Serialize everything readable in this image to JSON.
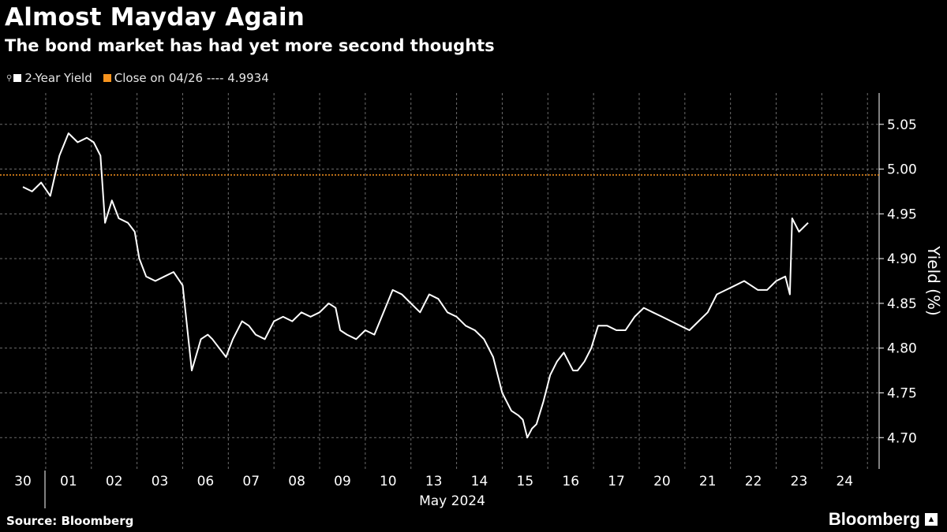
{
  "header": {
    "title": "Almost Mayday Again",
    "subtitle": "The bond market has had yet more second thoughts"
  },
  "legend": {
    "series_label": "2-Year Yield",
    "reference_label": "Close on 04/26 ---- 4.9934"
  },
  "footer": {
    "source": "Source: Bloomberg",
    "brand": "Bloomberg"
  },
  "colors": {
    "background": "#000000",
    "line": "#ffffff",
    "reference": "#f7931e",
    "grid": "#6b6b6b",
    "text": "#ffffff"
  },
  "chart_data": {
    "type": "line",
    "title": "Almost Mayday Again",
    "subtitle": "The bond market has had yet more second thoughts",
    "ylabel": "Yield (%)",
    "xlabel": "May 2024",
    "ylim": [
      4.665,
      5.085
    ],
    "yticks": [
      "4.70",
      "4.75",
      "4.80",
      "4.85",
      "4.90",
      "4.95",
      "5.00",
      "5.05"
    ],
    "grid": true,
    "legend_position": "top-left",
    "categories": [
      "30",
      "01",
      "02",
      "03",
      "06",
      "07",
      "08",
      "09",
      "10",
      "13",
      "14",
      "15",
      "16",
      "17",
      "20",
      "21",
      "22",
      "23",
      "24"
    ],
    "reference_line": {
      "label": "Close on 04/26",
      "value": 4.9934
    },
    "series": [
      {
        "name": "2-Year Yield",
        "x": [
          0.0,
          0.2,
          0.4,
          0.6,
          0.8,
          1.0,
          1.2,
          1.4,
          1.55,
          1.7,
          1.8,
          1.95,
          2.1,
          2.3,
          2.45,
          2.55,
          2.7,
          2.9,
          3.1,
          3.3,
          3.5,
          3.7,
          3.9,
          4.05,
          4.15,
          4.3,
          4.45,
          4.6,
          4.8,
          4.95,
          5.1,
          5.3,
          5.5,
          5.7,
          5.9,
          6.1,
          6.3,
          6.5,
          6.7,
          6.85,
          6.95,
          7.1,
          7.3,
          7.5,
          7.7,
          7.9,
          8.1,
          8.3,
          8.5,
          8.7,
          8.9,
          9.1,
          9.3,
          9.5,
          9.7,
          9.9,
          10.1,
          10.3,
          10.5,
          10.7,
          10.85,
          10.95,
          11.05,
          11.15,
          11.25,
          11.4,
          11.55,
          11.7,
          11.85,
          11.95,
          12.05,
          12.15,
          12.3,
          12.45,
          12.6,
          12.8,
          13.0,
          13.2,
          13.4,
          13.6,
          13.8,
          14.0,
          14.2,
          14.4,
          14.6,
          14.8,
          15.0,
          15.2,
          15.4,
          15.6,
          15.8,
          15.95,
          16.1,
          16.3,
          16.5,
          16.7,
          16.8,
          16.85,
          16.9,
          17.0,
          17.1,
          17.2
        ],
        "values": [
          4.98,
          4.975,
          4.985,
          4.97,
          5.015,
          5.04,
          5.03,
          5.035,
          5.03,
          5.015,
          4.94,
          4.965,
          4.945,
          4.94,
          4.93,
          4.9,
          4.88,
          4.875,
          4.88,
          4.885,
          4.87,
          4.775,
          4.81,
          4.815,
          4.81,
          4.8,
          4.79,
          4.81,
          4.83,
          4.825,
          4.815,
          4.81,
          4.83,
          4.835,
          4.83,
          4.84,
          4.835,
          4.84,
          4.85,
          4.845,
          4.82,
          4.815,
          4.81,
          4.82,
          4.815,
          4.84,
          4.865,
          4.86,
          4.85,
          4.84,
          4.86,
          4.855,
          4.84,
          4.835,
          4.825,
          4.82,
          4.81,
          4.79,
          4.75,
          4.73,
          4.725,
          4.72,
          4.7,
          4.71,
          4.715,
          4.74,
          4.77,
          4.785,
          4.795,
          4.785,
          4.775,
          4.775,
          4.785,
          4.8,
          4.825,
          4.825,
          4.82,
          4.82,
          4.835,
          4.845,
          4.84,
          4.835,
          4.83,
          4.825,
          4.82,
          4.83,
          4.84,
          4.86,
          4.865,
          4.87,
          4.875,
          4.87,
          4.865,
          4.865,
          4.875,
          4.88,
          4.86,
          4.945,
          4.94,
          4.93,
          4.935,
          4.94
        ]
      }
    ]
  }
}
